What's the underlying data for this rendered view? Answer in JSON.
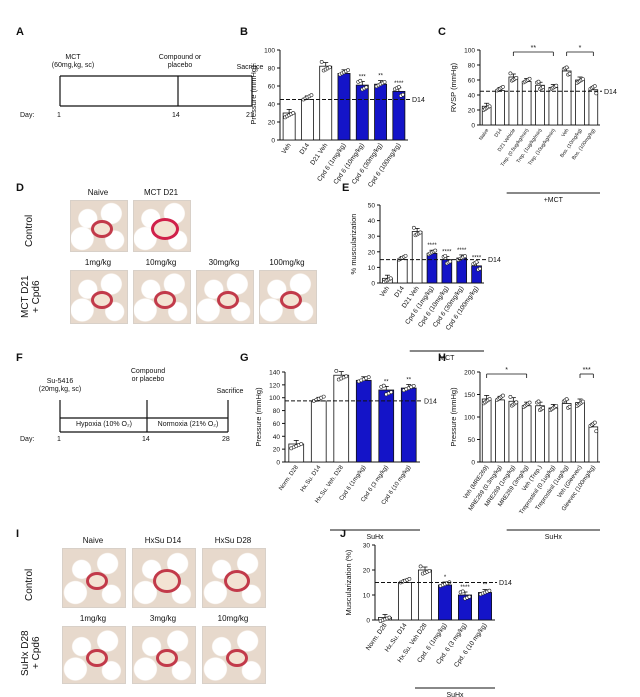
{
  "panel_letters": {
    "a": "A",
    "b": "B",
    "c": "C",
    "d": "D",
    "e": "E",
    "f": "F",
    "g": "G",
    "h": "H",
    "i": "I",
    "j": "J"
  },
  "timeline_a": {
    "start": "MCT\n(60mg,kg, sc)",
    "mid": "Compound or\nplacebo",
    "end": "Sacrifice",
    "day_label": "Day:",
    "days": [
      "1",
      "14",
      "21"
    ]
  },
  "timeline_f": {
    "start": "Su-5416\n(20mg,kg, sc)",
    "mid": "Compound\nor placebo",
    "end": "Sacrifice",
    "phase1": "Hypoxia (10% O₂)",
    "phase2": "Normoxia (21% O₂)",
    "day_label": "Day:",
    "days": [
      "1",
      "14",
      "28"
    ]
  },
  "micro_d": {
    "row_control": "Control",
    "row_treated": "MCT D21\n+ Cpd6",
    "top": [
      "Naive",
      "MCT D21"
    ],
    "bottom": [
      "1mg/kg",
      "10mg/kg",
      "30mg/kg",
      "100mg/kg"
    ]
  },
  "micro_i": {
    "row_control": "Control",
    "row_treated": "SuHx D28\n+ Cpd6",
    "top": [
      "Naive",
      "HxSu D14",
      "HxSu D28"
    ],
    "bottom": [
      "1mg/kg",
      "3mg/kg",
      "10mg/kg"
    ]
  },
  "colors": {
    "blue": "#1414c8",
    "white": "#ffffff",
    "grey": "#555555"
  },
  "chart_data": [
    {
      "panel": "B",
      "type": "bar",
      "ylabel": "Pressure (mmHg)",
      "ylim": [
        0,
        100
      ],
      "yticks": [
        0,
        20,
        40,
        60,
        80,
        100
      ],
      "ref_line": {
        "value": 45,
        "label": "D14"
      },
      "categories": [
        "Veh",
        "D14",
        "D21 Veh",
        "Cpd 6 (1mg/kg)",
        "Cpd 6 (10mg/kg)",
        "Cpd 6 (30mg/kg)",
        "Cpd 6 (100mg/kg)"
      ],
      "values": [
        30,
        45,
        82,
        74,
        61,
        62,
        54
      ],
      "fill": [
        "white",
        "white",
        "white",
        "blue",
        "blue",
        "blue",
        "blue"
      ],
      "stars": [
        "",
        "",
        "",
        "",
        "***",
        "**",
        "****"
      ],
      "group_label": ""
    },
    {
      "panel": "C",
      "type": "bar",
      "ylabel": "RVSP (mmHg)",
      "ylim": [
        0,
        100
      ],
      "yticks": [
        0,
        20,
        40,
        60,
        80,
        100
      ],
      "ref_line": {
        "value": 45,
        "label": "D14"
      },
      "categories": [
        "Naive",
        "D14",
        "D21 Vehicle",
        "Trep. (0.5ug/kg/min)",
        "Trep. (1ug/kg/min)",
        "Trep. (10ug/kg/min)",
        "Veh",
        "Bos. (10mg/kg)",
        "Bos. (100mg/kg)"
      ],
      "values": [
        25,
        46,
        64,
        58,
        53,
        50,
        72,
        60,
        47
      ],
      "fill": [
        "white",
        "white",
        "white",
        "white",
        "white",
        "white",
        "white",
        "white",
        "white"
      ],
      "stars": [
        "",
        "",
        "",
        "",
        "",
        "",
        "",
        "",
        ""
      ],
      "brackets": [
        {
          "from": 2,
          "to": 5,
          "label": "**"
        },
        {
          "from": 6,
          "to": 8,
          "label": "*"
        }
      ],
      "group_label": "+MCT"
    },
    {
      "panel": "E",
      "type": "bar",
      "ylabel": "% muscularization",
      "ylim": [
        0,
        50
      ],
      "yticks": [
        0,
        10,
        20,
        30,
        40,
        50
      ],
      "ref_line": {
        "value": 15,
        "label": "D14"
      },
      "categories": [
        "Veh",
        "D14",
        "D21 Veh",
        "Cpd 6 (1mg/kg)",
        "Cpd 6 (10mg/kg)",
        "Cpd 6 (30mg/kg)",
        "Cpd 6 (100mg/kg)"
      ],
      "values": [
        3,
        15,
        33,
        19,
        15,
        16,
        11
      ],
      "fill": [
        "white",
        "white",
        "white",
        "blue",
        "blue",
        "blue",
        "blue"
      ],
      "stars": [
        "",
        "",
        "",
        "****",
        "****",
        "****",
        "****"
      ],
      "group_label": "MCT"
    },
    {
      "panel": "G",
      "type": "bar",
      "ylabel": "Pressure (mmHg)",
      "ylim": [
        0,
        140
      ],
      "yticks": [
        0,
        20,
        40,
        60,
        80,
        100,
        120,
        140
      ],
      "ref_line": {
        "value": 95,
        "label": "D14"
      },
      "categories": [
        "Norm. D28",
        "Hx.Su. D14",
        "Hx.Su. Veh. D28",
        "Cpd 6 (1mg/kg)",
        "Cpd 6 (3 mg/kg)",
        "Cpd 6 (10 mg/kg)"
      ],
      "values": [
        28,
        95,
        135,
        127,
        112,
        115
      ],
      "fill": [
        "white",
        "white",
        "white",
        "blue",
        "blue",
        "blue"
      ],
      "stars": [
        "",
        "",
        "",
        "",
        "**",
        "**"
      ],
      "group_label": "SuHx"
    },
    {
      "panel": "H",
      "type": "bar",
      "ylabel": "Pressure (mmHg)",
      "ylim": [
        0,
        200
      ],
      "yticks": [
        0,
        50,
        100,
        150,
        200
      ],
      "ref_line": null,
      "categories": [
        "Veh (MRE269)",
        "MRE269 (0.3mg/kg)",
        "MRE269 (1mg/kg)",
        "MRE269 (3mg/kg)",
        "Veh (Trep.)",
        "Treprostinil (0.1ug/kg)",
        "Treprostinil (1ug/kg)",
        "Veh (Gleevec)",
        "Gleevec (100mg/kg)"
      ],
      "values": [
        140,
        138,
        135,
        125,
        125,
        120,
        130,
        132,
        78
      ],
      "fill": [
        "white",
        "white",
        "white",
        "white",
        "white",
        "white",
        "white",
        "white",
        "white"
      ],
      "stars": [
        "",
        "",
        "",
        "",
        "",
        "",
        "",
        "",
        ""
      ],
      "brackets": [
        {
          "from": 0,
          "to": 3,
          "label": "*"
        },
        {
          "from": 7,
          "to": 8,
          "label": "***"
        }
      ],
      "group_label": "SuHx"
    },
    {
      "panel": "J",
      "type": "bar",
      "ylabel": "Muscularization (%)",
      "ylim": [
        0,
        30
      ],
      "yticks": [
        0,
        10,
        20,
        30
      ],
      "ref_line": {
        "value": 15,
        "label": "D14"
      },
      "categories": [
        "Norm. D28",
        "Hx.Su. D14",
        "Hx.Su. Veh D28",
        "Cpd. 6 (1mg/kg)",
        "Cpd. 6 (3 mg/kg)",
        "Cpd. 6 (10 mg/kg)"
      ],
      "values": [
        1,
        15,
        20,
        14,
        10,
        11
      ],
      "fill": [
        "white",
        "white",
        "white",
        "blue",
        "blue",
        "blue"
      ],
      "stars": [
        "",
        "",
        "",
        "*",
        "****",
        "**"
      ],
      "group_label": "SuHx"
    }
  ]
}
